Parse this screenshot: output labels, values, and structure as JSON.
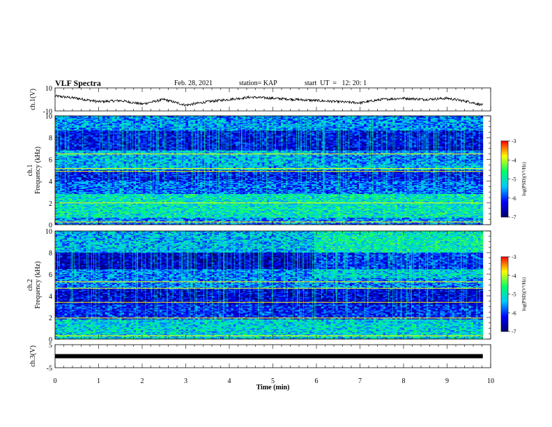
{
  "header": {
    "title": "VLF Spectra",
    "date": "Feb. 28, 2021",
    "station": "station= KAP",
    "start": "start  UT  =   12: 20: 1"
  },
  "chart_data": [
    {
      "type": "line",
      "panel": "waveform-ch1",
      "ylabel": "ch.1(V)",
      "ylim": [
        -10,
        10
      ],
      "yticks": [
        "10",
        "-10"
      ],
      "x_range_min": [
        0,
        9.82
      ],
      "trend_points": [
        [
          0,
          3
        ],
        [
          0.5,
          1
        ],
        [
          1,
          -2
        ],
        [
          1.5,
          -1
        ],
        [
          2,
          -4
        ],
        [
          2.5,
          0
        ],
        [
          3,
          -5
        ],
        [
          3.5,
          -2
        ],
        [
          4,
          0
        ],
        [
          4.5,
          2
        ],
        [
          5,
          1
        ],
        [
          5.5,
          0
        ],
        [
          6,
          -1
        ],
        [
          6.5,
          -2
        ],
        [
          7,
          -3
        ],
        [
          7.5,
          0
        ],
        [
          8,
          1
        ],
        [
          8.5,
          0
        ],
        [
          9,
          1
        ],
        [
          9.5,
          -2
        ],
        [
          9.82,
          -5
        ]
      ]
    },
    {
      "type": "heatmap",
      "panel": "spectrogram-ch1",
      "channel_label": "ch.1",
      "ylabel": "Frequency  (kHz)",
      "ylim": [
        0,
        10
      ],
      "yticks": [
        "0",
        "2",
        "4",
        "6",
        "8",
        "10"
      ],
      "colorbar": {
        "label": "log(PSD)(V²/Hz)",
        "range": [
          -7,
          -3
        ],
        "ticks": [
          "-3",
          "-4",
          "-5",
          "-6",
          "-7"
        ]
      },
      "band_levels": [
        {
          "f_from": 0,
          "f_to": 0.6,
          "level": -5.6
        },
        {
          "f_from": 0.6,
          "f_to": 2.8,
          "level": -5.0
        },
        {
          "f_from": 2.8,
          "f_to": 4.0,
          "level": -5.8
        },
        {
          "f_from": 4.0,
          "f_to": 5.0,
          "level": -6.2
        },
        {
          "f_from": 5.0,
          "f_to": 6.8,
          "level": -5.4
        },
        {
          "f_from": 6.8,
          "f_to": 8.6,
          "level": -6.3
        },
        {
          "f_from": 8.6,
          "f_to": 10,
          "level": -5.6
        }
      ],
      "lines_khz": [
        0.25,
        2.0,
        4.9,
        5.15,
        6.5
      ]
    },
    {
      "type": "heatmap",
      "panel": "spectrogram-ch2",
      "channel_label": "ch.2",
      "ylabel": "Frequency  (kHz)",
      "ylim": [
        0,
        10
      ],
      "yticks": [
        "0",
        "2",
        "4",
        "6",
        "8",
        "10"
      ],
      "colorbar": {
        "label": "log(PSD)(V²/Hz)",
        "range": [
          -7,
          -3
        ],
        "ticks": [
          "-3",
          "-4",
          "-5",
          "-6",
          "-7"
        ]
      },
      "band_levels": [
        {
          "f_from": 0,
          "f_to": 1.8,
          "level": -5.2
        },
        {
          "f_from": 1.8,
          "f_to": 3.2,
          "level": -6.1
        },
        {
          "f_from": 3.2,
          "f_to": 4.6,
          "level": -6.4
        },
        {
          "f_from": 4.6,
          "f_to": 6.5,
          "level": -5.7
        },
        {
          "f_from": 6.5,
          "f_to": 8.0,
          "level": -6.5
        },
        {
          "f_from": 8.0,
          "f_to": 10,
          "level": -5.4
        }
      ],
      "lines_khz": [
        0.3,
        1.95,
        3.4,
        4.7,
        5.3
      ]
    },
    {
      "type": "line",
      "panel": "waveform-ch3",
      "ylabel": "ch.3(V)",
      "ylim": [
        -5,
        5
      ],
      "yticks": [
        "5",
        "-5"
      ],
      "level": 0,
      "x_range_min": [
        0,
        9.82
      ]
    }
  ],
  "xaxis": {
    "label": "Time  (min)",
    "range": [
      0,
      10
    ],
    "ticks": [
      "0",
      "1",
      "2",
      "3",
      "4",
      "5",
      "6",
      "7",
      "8",
      "9",
      "10"
    ]
  },
  "colors": {
    "trace": "#000000",
    "colormap": [
      "#00006e",
      "#0000ff",
      "#00c8ff",
      "#00ff66",
      "#ffff00",
      "#ff0000",
      "#ffffff"
    ]
  }
}
